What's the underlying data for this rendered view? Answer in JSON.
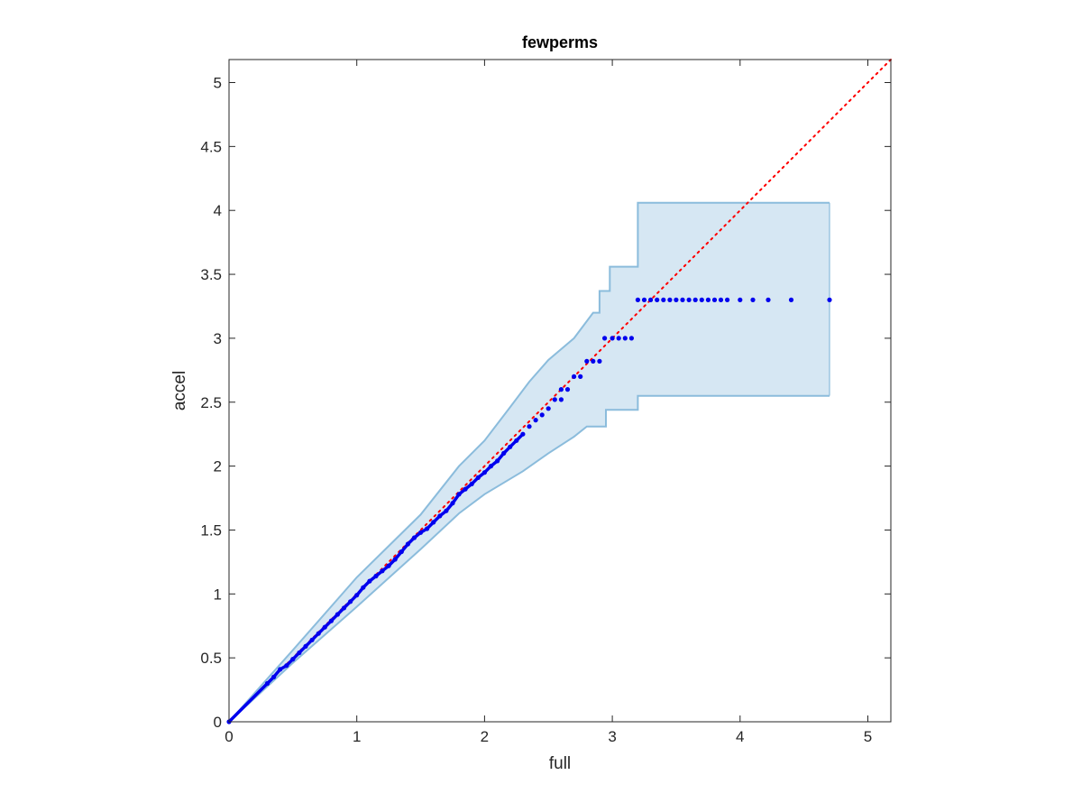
{
  "chart_data": {
    "type": "scatter",
    "title": "fewperms",
    "xlabel": "full",
    "ylabel": "accel",
    "xlim": [
      0,
      5.18
    ],
    "ylim": [
      0,
      5.18
    ],
    "xticks": [
      0,
      1,
      2,
      3,
      4,
      5
    ],
    "yticks": [
      0,
      0.5,
      1,
      1.5,
      2,
      2.5,
      3,
      3.5,
      4,
      4.5,
      5
    ],
    "xtick_labels": [
      "0",
      "1",
      "2",
      "3",
      "4",
      "5"
    ],
    "ytick_labels": [
      "0",
      "0.5",
      "1",
      "1.5",
      "2",
      "2.5",
      "3",
      "3.5",
      "4",
      "4.5",
      "5"
    ],
    "grid": false,
    "box": true,
    "colors": {
      "points": "#0000ee",
      "reference_line": "#ff0000",
      "band_fill": "#d6e7f3",
      "band_edge": "#8bbcdc",
      "axes": "#262626"
    },
    "reference_line": {
      "style": "dotted",
      "from": [
        0,
        0
      ],
      "to": [
        5.18,
        5.18
      ]
    },
    "band": {
      "upper": [
        [
          0,
          0
        ],
        [
          0.5,
          0.56
        ],
        [
          1,
          1.13
        ],
        [
          1.5,
          1.62
        ],
        [
          1.8,
          2.0
        ],
        [
          2,
          2.2
        ],
        [
          2.2,
          2.46
        ],
        [
          2.35,
          2.66
        ],
        [
          2.5,
          2.83
        ],
        [
          2.7,
          3.0
        ],
        [
          2.85,
          3.2
        ],
        [
          2.9,
          3.2
        ],
        [
          2.9,
          3.37
        ],
        [
          2.98,
          3.37
        ],
        [
          2.98,
          3.56
        ],
        [
          3.2,
          3.56
        ],
        [
          3.2,
          4.06
        ],
        [
          4.7,
          4.06
        ]
      ],
      "lower": [
        [
          0,
          0
        ],
        [
          0.5,
          0.46
        ],
        [
          1,
          0.9
        ],
        [
          1.5,
          1.35
        ],
        [
          1.8,
          1.63
        ],
        [
          2,
          1.78
        ],
        [
          2.3,
          1.96
        ],
        [
          2.5,
          2.1
        ],
        [
          2.7,
          2.23
        ],
        [
          2.8,
          2.31
        ],
        [
          2.95,
          2.31
        ],
        [
          2.95,
          2.44
        ],
        [
          3.2,
          2.44
        ],
        [
          3.2,
          2.55
        ],
        [
          4.7,
          2.55
        ]
      ]
    },
    "series": [
      {
        "points": [
          [
            0,
            0
          ],
          [
            0.3,
            0.3
          ],
          [
            0.35,
            0.35
          ],
          [
            0.4,
            0.41
          ],
          [
            0.45,
            0.44
          ],
          [
            0.5,
            0.49
          ],
          [
            0.55,
            0.54
          ],
          [
            0.6,
            0.59
          ],
          [
            0.65,
            0.64
          ],
          [
            0.7,
            0.69
          ],
          [
            0.75,
            0.74
          ],
          [
            0.8,
            0.79
          ],
          [
            0.85,
            0.84
          ],
          [
            0.9,
            0.89
          ],
          [
            0.95,
            0.94
          ],
          [
            1,
            0.99
          ],
          [
            1.05,
            1.05
          ],
          [
            1.1,
            1.1
          ],
          [
            1.15,
            1.14
          ],
          [
            1.2,
            1.18
          ],
          [
            1.25,
            1.22
          ],
          [
            1.3,
            1.27
          ],
          [
            1.35,
            1.33
          ],
          [
            1.4,
            1.39
          ],
          [
            1.45,
            1.44
          ],
          [
            1.5,
            1.48
          ],
          [
            1.55,
            1.51
          ],
          [
            1.6,
            1.56
          ],
          [
            1.65,
            1.61
          ],
          [
            1.7,
            1.65
          ],
          [
            1.75,
            1.71
          ],
          [
            1.8,
            1.78
          ],
          [
            1.85,
            1.82
          ],
          [
            1.9,
            1.86
          ],
          [
            1.95,
            1.91
          ],
          [
            2,
            1.95
          ],
          [
            2.05,
            2.0
          ],
          [
            2.1,
            2.04
          ],
          [
            2.15,
            2.1
          ],
          [
            2.2,
            2.15
          ],
          [
            2.25,
            2.2
          ],
          [
            2.3,
            2.25
          ],
          [
            2.35,
            2.31
          ],
          [
            2.4,
            2.36
          ],
          [
            2.45,
            2.4
          ],
          [
            2.5,
            2.45
          ],
          [
            2.55,
            2.52
          ],
          [
            2.6,
            2.52
          ],
          [
            2.6,
            2.6
          ],
          [
            2.65,
            2.6
          ],
          [
            2.7,
            2.7
          ],
          [
            2.75,
            2.7
          ],
          [
            2.8,
            2.82
          ],
          [
            2.85,
            2.82
          ],
          [
            2.9,
            2.82
          ],
          [
            2.94,
            3.0
          ],
          [
            3.0,
            3.0
          ],
          [
            3.05,
            3.0
          ],
          [
            3.1,
            3.0
          ],
          [
            3.15,
            3.0
          ],
          [
            3.2,
            3.3
          ],
          [
            3.25,
            3.3
          ],
          [
            3.3,
            3.3
          ],
          [
            3.35,
            3.3
          ],
          [
            3.4,
            3.3
          ],
          [
            3.45,
            3.3
          ],
          [
            3.5,
            3.3
          ],
          [
            3.55,
            3.3
          ],
          [
            3.6,
            3.3
          ],
          [
            3.65,
            3.3
          ],
          [
            3.7,
            3.3
          ],
          [
            3.75,
            3.3
          ],
          [
            3.8,
            3.3
          ],
          [
            3.85,
            3.3
          ],
          [
            3.9,
            3.3
          ],
          [
            4.0,
            3.3
          ],
          [
            4.1,
            3.3
          ],
          [
            4.22,
            3.3
          ],
          [
            4.4,
            3.3
          ],
          [
            4.7,
            3.3
          ]
        ]
      }
    ]
  }
}
